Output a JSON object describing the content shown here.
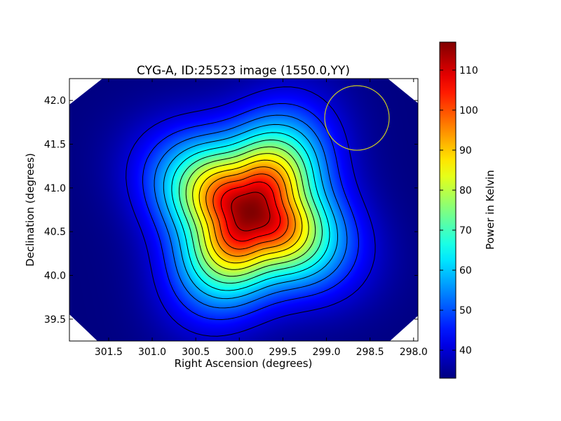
{
  "chart_data": {
    "type": "heatmap",
    "title": "CYG-A, ID:25523 image (1550.0,YY)",
    "xlabel": "Right Ascension (degrees)",
    "ylabel": "Declination (degrees)",
    "xlim": [
      301.95,
      297.95
    ],
    "ylim": [
      39.25,
      42.25
    ],
    "x_ticks": [
      301.5,
      301.0,
      300.5,
      300.0,
      299.5,
      299.0,
      298.5,
      298.0
    ],
    "x_tick_labels": [
      "301.5",
      "301.0",
      "300.5",
      "300.0",
      "299.5",
      "299.0",
      "298.5",
      "298.0"
    ],
    "y_ticks": [
      39.5,
      40.0,
      40.5,
      41.0,
      41.5,
      42.0
    ],
    "y_tick_labels": [
      "39.5",
      "40.0",
      "40.5",
      "41.0",
      "41.5",
      "42.0"
    ],
    "source": {
      "ra": 299.87,
      "dec": 40.73,
      "peak": 117
    },
    "beam": {
      "ra": 298.65,
      "dec": 41.8,
      "radius_deg": 0.37,
      "color": "#cccc22"
    },
    "background_level": 33,
    "contour_levels": [
      40,
      46,
      52,
      58,
      64,
      70,
      76,
      82,
      88,
      94,
      100,
      106,
      112
    ],
    "colorbar": {
      "label": "Power in Kelvin",
      "min": 33,
      "max": 117,
      "ticks": [
        40,
        50,
        60,
        70,
        80,
        90,
        100,
        110
      ],
      "tick_labels": [
        "40",
        "50",
        "60",
        "70",
        "80",
        "90",
        "100",
        "110"
      ],
      "colormap": "jet"
    }
  }
}
